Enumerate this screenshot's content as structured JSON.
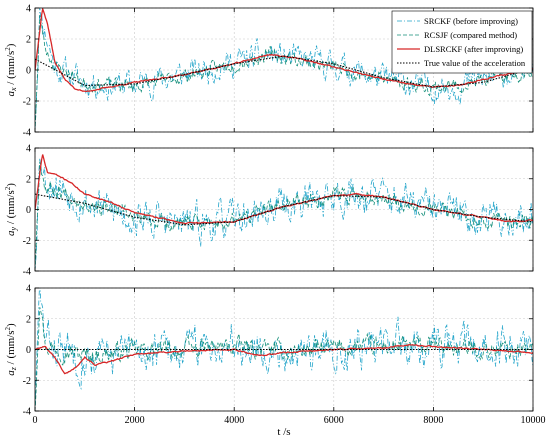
{
  "chart_data": [
    {
      "type": "line",
      "ylabel_base": "a",
      "ylabel_sub": "x",
      "ylabel_unit_prefix": " / (mm/s",
      "ylabel_unit_exp": "2",
      "ylabel_unit_suffix": ")",
      "xlim": [
        0,
        10000
      ],
      "ylim": [
        -4,
        4
      ],
      "yticks": [
        "4",
        "2",
        "0",
        "-2",
        "-4"
      ],
      "grid": true,
      "legend": "top-right",
      "series": [
        {
          "name": "SRCKF (before improving)",
          "color": "#1fa3c9",
          "style": "dashdot",
          "noise": 0.9,
          "seed": 11,
          "x": [
            0,
            100,
            200,
            400,
            700,
            1000,
            1500,
            2000,
            3000,
            4000,
            4700,
            5000,
            6000,
            7000,
            8000,
            8500,
            9000,
            10000
          ],
          "y": [
            -3.5,
            4,
            2.5,
            0.2,
            -0.3,
            -0.8,
            -1.0,
            -0.9,
            -0.3,
            0.5,
            1.0,
            0.8,
            0.3,
            -0.6,
            -1.1,
            -1.0,
            -0.6,
            0.2
          ]
        },
        {
          "name": "RCSJF (compared method)",
          "color": "#148f7a",
          "style": "dashed",
          "noise": 0.45,
          "seed": 23,
          "x": [
            0,
            100,
            200,
            400,
            700,
            1000,
            2000,
            3000,
            4000,
            4700,
            5000,
            6000,
            7000,
            8000,
            8500,
            9000,
            10000
          ],
          "y": [
            -3.8,
            3.5,
            1.5,
            0.2,
            -0.2,
            -0.9,
            -1.0,
            -0.4,
            0.4,
            1.0,
            0.8,
            0.2,
            -0.6,
            -1.1,
            -1.0,
            -0.7,
            0.0
          ]
        },
        {
          "name": "DLSRCKF (after improving)",
          "color": "#d62728",
          "style": "solid",
          "noise": 0.04,
          "seed": 37,
          "x": [
            0,
            150,
            250,
            400,
            600,
            800,
            1000,
            1500,
            2000,
            3000,
            4000,
            4700,
            5200,
            6000,
            7000,
            7500,
            8000,
            8500,
            9000,
            10000
          ],
          "y": [
            0,
            4.0,
            3.0,
            0.5,
            -0.6,
            -1.2,
            -1.4,
            -1.1,
            -0.8,
            -0.3,
            0.4,
            1.0,
            0.8,
            0.2,
            -0.6,
            -0.9,
            -1.1,
            -1.0,
            -0.6,
            0.1
          ]
        },
        {
          "name": "True value of the acceleration",
          "color": "#000000",
          "style": "dotted",
          "noise": 0,
          "seed": 1,
          "x": [
            0,
            1000,
            2000,
            3000,
            4000,
            5000,
            6000,
            7000,
            8000,
            9000,
            10000
          ],
          "y": [
            0.7,
            -1.0,
            -0.9,
            -0.3,
            0.4,
            0.9,
            0.4,
            -0.5,
            -1.1,
            -0.8,
            0.1
          ]
        }
      ]
    },
    {
      "type": "line",
      "ylabel_base": "a",
      "ylabel_sub": "y",
      "ylabel_unit_prefix": " / (mm/s",
      "ylabel_unit_exp": "2",
      "ylabel_unit_suffix": ")",
      "xlim": [
        0,
        10000
      ],
      "ylim": [
        -4,
        4
      ],
      "yticks": [
        "4",
        "2",
        "0",
        "-2",
        "-4"
      ],
      "grid": true,
      "series": [
        {
          "name": "SRCKF (before improving)",
          "color": "#1fa3c9",
          "style": "dashdot",
          "noise": 1.2,
          "seed": 53,
          "x": [
            0,
            100,
            200,
            500,
            1000,
            2000,
            3000,
            4000,
            5000,
            6000,
            6500,
            7000,
            8000,
            9000,
            10000
          ],
          "y": [
            -3.5,
            4,
            2.0,
            1.5,
            0.5,
            -0.5,
            -1.0,
            -0.7,
            0.3,
            0.9,
            1.0,
            0.8,
            0.0,
            -0.5,
            -0.7
          ]
        },
        {
          "name": "RCSJF (compared method)",
          "color": "#148f7a",
          "style": "dashed",
          "noise": 0.5,
          "seed": 67,
          "x": [
            0,
            100,
            200,
            500,
            1000,
            2000,
            3000,
            4000,
            5000,
            6000,
            6500,
            7000,
            8000,
            9000,
            10000
          ],
          "y": [
            -3.8,
            3.5,
            1.5,
            1.2,
            0.5,
            -0.5,
            -1.0,
            -0.7,
            0.3,
            0.9,
            1.0,
            0.8,
            0.0,
            -0.6,
            -0.8
          ]
        },
        {
          "name": "DLSRCKF (after improving)",
          "color": "#d62728",
          "style": "solid",
          "noise": 0.04,
          "seed": 71,
          "x": [
            0,
            150,
            250,
            400,
            700,
            1000,
            1500,
            2000,
            3000,
            4000,
            5000,
            6000,
            6500,
            7000,
            8000,
            9000,
            9500,
            10000
          ],
          "y": [
            0,
            3.6,
            2.4,
            2.3,
            1.8,
            1.0,
            0.5,
            -0.2,
            -0.9,
            -0.8,
            0.2,
            0.9,
            1.0,
            0.8,
            0.0,
            -0.5,
            -0.8,
            -0.7
          ]
        },
        {
          "name": "True value of the acceleration",
          "color": "#000000",
          "style": "dotted",
          "noise": 0,
          "seed": 1,
          "x": [
            0,
            1000,
            2000,
            3000,
            4000,
            5000,
            6000,
            7000,
            8000,
            9000,
            10000
          ],
          "y": [
            1.0,
            0.4,
            -0.5,
            -1.0,
            -0.8,
            0.2,
            0.9,
            0.8,
            0.0,
            -0.5,
            -0.8
          ]
        }
      ]
    },
    {
      "type": "line",
      "ylabel_base": "a",
      "ylabel_sub": "z",
      "ylabel_unit_prefix": " / (mm/s",
      "ylabel_unit_exp": "2",
      "ylabel_unit_suffix": ")",
      "xlabel": "t /s",
      "xlim": [
        0,
        10000
      ],
      "ylim": [
        -4,
        4
      ],
      "yticks": [
        "4",
        "2",
        "0",
        "-2",
        "-4"
      ],
      "xticks": [
        "0",
        "2000",
        "4000",
        "6000",
        "8000",
        "10000"
      ],
      "grid": true,
      "series": [
        {
          "name": "SRCKF (before improving)",
          "color": "#1fa3c9",
          "style": "dashdot",
          "noise": 1.3,
          "seed": 83,
          "x": [
            0,
            100,
            200,
            1000,
            2000,
            3000,
            4000,
            5000,
            6000,
            7000,
            8000,
            9000,
            10000
          ],
          "y": [
            -3.8,
            4,
            0.5,
            -0.5,
            -0.2,
            0.0,
            0.5,
            -0.2,
            0.2,
            0.3,
            0.4,
            0.0,
            0.3
          ]
        },
        {
          "name": "RCSJF (compared method)",
          "color": "#148f7a",
          "style": "dashed",
          "noise": 0.6,
          "seed": 97,
          "x": [
            0,
            100,
            200,
            1000,
            2000,
            3000,
            4000,
            5000,
            6000,
            7000,
            8000,
            9000,
            10000
          ],
          "y": [
            -3.8,
            3.8,
            0.3,
            -0.4,
            -0.1,
            0.0,
            0.2,
            -0.1,
            0.1,
            0.2,
            0.2,
            0.0,
            0.1
          ]
        },
        {
          "name": "DLSRCKF (after improving)",
          "color": "#d62728",
          "style": "solid",
          "noise": 0.04,
          "seed": 101,
          "x": [
            0,
            200,
            400,
            600,
            800,
            1000,
            1200,
            1500,
            2000,
            3000,
            4000,
            4500,
            5000,
            6000,
            7000,
            7500,
            8000,
            9000,
            10000
          ],
          "y": [
            0,
            0.2,
            -0.5,
            -1.6,
            -1.2,
            -0.5,
            -1.0,
            -0.8,
            -0.3,
            -0.1,
            0.0,
            -0.4,
            -0.2,
            0.0,
            0.1,
            0.3,
            0.2,
            0.0,
            -0.2
          ]
        },
        {
          "name": "True value of the acceleration",
          "color": "#000000",
          "style": "dotted",
          "noise": 0,
          "seed": 1,
          "x": [
            0,
            10000
          ],
          "y": [
            0,
            0
          ]
        }
      ]
    }
  ]
}
